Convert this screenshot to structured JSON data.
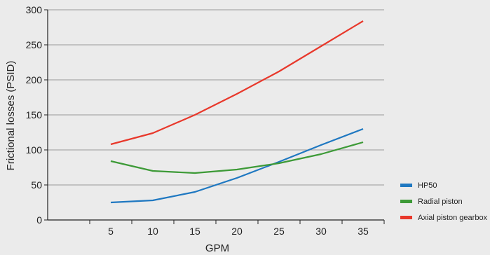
{
  "chart_data": {
    "type": "line",
    "x": [
      5,
      10,
      15,
      20,
      25,
      30,
      35
    ],
    "x_ticks": [
      "5",
      "10",
      "15",
      "20",
      "25",
      "30",
      "35"
    ],
    "xlim": [
      -2.5,
      37.5
    ],
    "ylim": [
      0,
      300
    ],
    "y_ticks": [
      "0",
      "50",
      "100",
      "150",
      "200",
      "250",
      "300"
    ],
    "xlabel": "GPM",
    "ylabel": "Frictional losses (PSID)",
    "grid": "horizontal",
    "legend_position": "right",
    "series": [
      {
        "name": "HP50",
        "color": "#1f78c1",
        "values": [
          25,
          28,
          40,
          60,
          83,
          107,
          130
        ]
      },
      {
        "name": "Radial piston",
        "color": "#3d9a37",
        "values": [
          84,
          70,
          67,
          72,
          81,
          94,
          111
        ]
      },
      {
        "name": "Axial piston gearbox",
        "color": "#e8382b",
        "values": [
          108,
          124,
          150,
          180,
          212,
          248,
          284
        ]
      }
    ]
  }
}
